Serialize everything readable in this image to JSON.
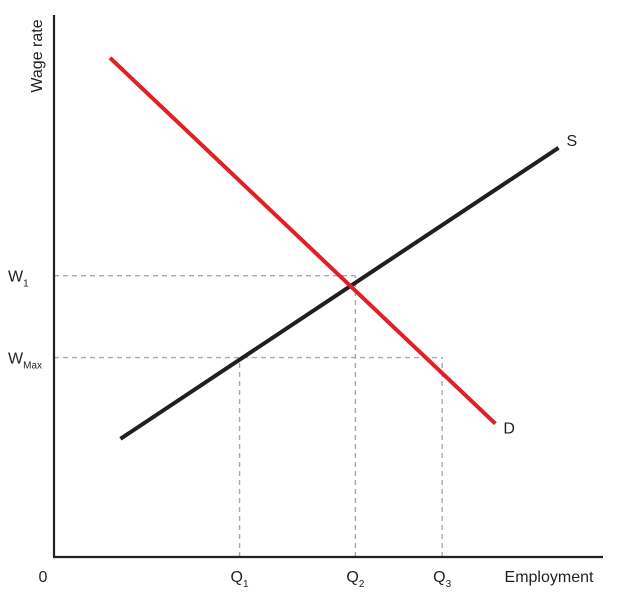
{
  "chart_data": {
    "type": "line",
    "xlabel": "Employment",
    "ylabel": "Wage rate",
    "origin_label": "0",
    "xlim": [
      0,
      100
    ],
    "ylim": [
      0,
      100
    ],
    "grid": false,
    "x_ticks": [
      {
        "id": "q1",
        "base": "Q",
        "sub": "1",
        "value": 33.8
      },
      {
        "id": "q2",
        "base": "Q",
        "sub": "2",
        "value": 54.9
      },
      {
        "id": "q3",
        "base": "Q",
        "sub": "3",
        "value": 70.7
      }
    ],
    "y_ticks": [
      {
        "id": "w1",
        "base": "W",
        "sub": "1",
        "value": 51.9
      },
      {
        "id": "wmax",
        "base": "W",
        "sub": "Max",
        "value": 36.8
      }
    ],
    "series": [
      {
        "name": "S",
        "color": "#231f20",
        "points": [
          [
            12.1,
            21.8
          ],
          [
            91.9,
            75.5
          ]
        ]
      },
      {
        "name": "D",
        "color": "#e31e25",
        "points": [
          [
            10.2,
            92.1
          ],
          [
            80.4,
            24.6
          ]
        ]
      }
    ],
    "reference_lines": [
      {
        "from": [
          0,
          51.9
        ],
        "to": [
          54.9,
          51.9
        ]
      },
      {
        "from": [
          0,
          36.8
        ],
        "to": [
          70.7,
          36.8
        ]
      },
      {
        "from": [
          33.8,
          0
        ],
        "to": [
          33.8,
          36.8
        ]
      },
      {
        "from": [
          54.9,
          0
        ],
        "to": [
          54.9,
          51.9
        ]
      },
      {
        "from": [
          70.7,
          0
        ],
        "to": [
          70.7,
          36.8
        ]
      }
    ],
    "colors": {
      "axis": "#231f20",
      "dashed": "#a7a9ac"
    }
  }
}
